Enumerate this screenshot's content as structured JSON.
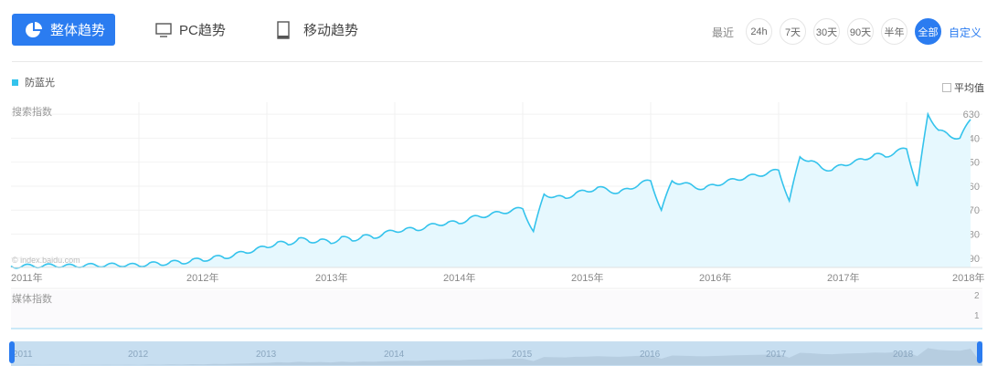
{
  "tabs": [
    {
      "label": "整体趋势",
      "icon": "pie-chart-icon",
      "active": true
    },
    {
      "label": "PC趋势",
      "icon": "monitor-icon"
    },
    {
      "label": "移动趋势",
      "icon": "tablet-icon"
    }
  ],
  "range": {
    "label": "最近",
    "options": [
      "24h",
      "7天",
      "30天",
      "90天",
      "半年",
      "全部"
    ],
    "active": "全部",
    "custom": "自定义"
  },
  "accent": "#2b7cf0",
  "average_label": "平均值",
  "watermark": "© index.baidu.com",
  "media": {
    "label": "媒体指数",
    "ticks": [
      "2",
      "1"
    ]
  },
  "navigator": {
    "years": [
      "2011",
      "2012",
      "2013",
      "2014",
      "2015",
      "2016",
      "2017",
      "2018"
    ]
  },
  "chart_data": {
    "type": "area",
    "legend": [
      "防蓝光"
    ],
    "ylabel": "搜索指数",
    "color": "#34c3ec",
    "x_start": "2011-01",
    "x_step": "month",
    "xticks": [
      "2011年",
      "2012年",
      "2013年",
      "2014年",
      "2015年",
      "2016年",
      "2017年",
      "2018年"
    ],
    "yticks": [
      90,
      180,
      270,
      360,
      450,
      540,
      630
    ],
    "ylim": [
      55,
      675
    ],
    "grid": true,
    "values": [
      60,
      58,
      62,
      60,
      63,
      61,
      60,
      64,
      62,
      65,
      63,
      66,
      60,
      72,
      65,
      78,
      70,
      85,
      80,
      95,
      90,
      105,
      110,
      125,
      130,
      150,
      140,
      165,
      150,
      160,
      145,
      170,
      155,
      175,
      165,
      185,
      190,
      200,
      195,
      210,
      215,
      225,
      220,
      240,
      245,
      255,
      260,
      270,
      275,
      190,
      330,
      320,
      315,
      335,
      340,
      355,
      345,
      335,
      350,
      370,
      380,
      270,
      380,
      370,
      360,
      350,
      365,
      375,
      385,
      395,
      400,
      410,
      420,
      305,
      470,
      455,
      430,
      420,
      440,
      450,
      460,
      480,
      470,
      490,
      500,
      360,
      630,
      570,
      550,
      540,
      610
    ]
  }
}
